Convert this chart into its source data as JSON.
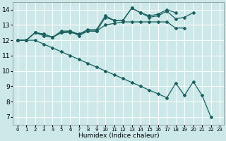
{
  "xlabel": "Humidex (Indice chaleur)",
  "bg_color": "#cce8e8",
  "grid_color": "#ffffff",
  "line_color": "#1a6060",
  "xlim": [
    -0.5,
    23.5
  ],
  "ylim": [
    6.5,
    14.5
  ],
  "x_ticks": [
    0,
    1,
    2,
    3,
    4,
    5,
    6,
    7,
    8,
    9,
    10,
    11,
    12,
    13,
    14,
    15,
    16,
    17,
    18,
    19,
    20,
    21,
    22,
    23
  ],
  "y_ticks": [
    7,
    8,
    9,
    10,
    11,
    12,
    13,
    14
  ],
  "series": [
    {
      "x": [
        0,
        1,
        2,
        3,
        4,
        5,
        6,
        7,
        8,
        9,
        10,
        11,
        12,
        13,
        14,
        15,
        16,
        17,
        18,
        19
      ],
      "y": [
        12.0,
        12.0,
        12.5,
        12.3,
        12.2,
        12.5,
        12.6,
        12.3,
        12.6,
        12.6,
        13.0,
        13.1,
        13.2,
        13.2,
        13.2,
        13.2,
        13.2,
        13.2,
        12.8,
        12.8
      ]
    },
    {
      "x": [
        0,
        1,
        2,
        3,
        4,
        5,
        6,
        7,
        8,
        9,
        10,
        11,
        12,
        13,
        14,
        15,
        16,
        17,
        18
      ],
      "y": [
        12.0,
        12.0,
        12.5,
        12.4,
        12.2,
        12.6,
        12.6,
        12.4,
        12.7,
        12.7,
        13.6,
        13.3,
        13.3,
        14.1,
        13.8,
        13.6,
        13.7,
        14.0,
        13.8
      ]
    },
    {
      "x": [
        0,
        1,
        2,
        3,
        4,
        5,
        6,
        7,
        8,
        9,
        10,
        11,
        12,
        13,
        14,
        15,
        16,
        17,
        18,
        19,
        20
      ],
      "y": [
        12.0,
        12.0,
        12.5,
        12.4,
        12.2,
        12.5,
        12.5,
        12.4,
        12.6,
        12.6,
        13.5,
        13.3,
        13.3,
        14.1,
        13.8,
        13.5,
        13.6,
        13.9,
        13.4,
        13.5,
        13.8
      ]
    },
    {
      "x": [
        0,
        1,
        2,
        3,
        4,
        5,
        6,
        7,
        8,
        9,
        10,
        11,
        12,
        13,
        14,
        15,
        16,
        17,
        18,
        19,
        20,
        21,
        22,
        23
      ],
      "y": [
        12.0,
        12.0,
        12.0,
        11.75,
        11.5,
        11.25,
        11.0,
        10.75,
        10.5,
        10.25,
        10.0,
        9.75,
        9.5,
        9.25,
        9.0,
        8.75,
        8.5,
        8.25,
        9.2,
        8.4,
        9.3,
        8.4,
        7.0,
        null
      ]
    }
  ]
}
